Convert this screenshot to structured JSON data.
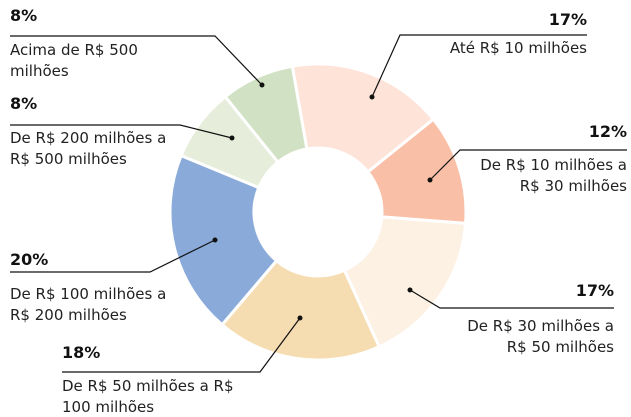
{
  "chart_data": {
    "type": "donut",
    "categories": [
      "Até R$ 10 milhões",
      "De R$ 10 milhões a R$ 30 milhões",
      "De R$ 30 milhões a R$ 50 milhões",
      "De R$ 50 milhões a R$ 100 milhões",
      "De R$ 100 milhões a R$ 200 milhões",
      "De R$ 200 milhões a R$ 500 milhões",
      "Acima de R$ 500 milhões"
    ],
    "values": [
      17,
      12,
      17,
      18,
      20,
      8,
      8
    ],
    "value_labels": [
      "17%",
      "12%",
      "17%",
      "18%",
      "20%",
      "8%",
      "8%"
    ],
    "colors": [
      "#fde3d8",
      "#f9bfa7",
      "#fdf1e3",
      "#f6dcb1",
      "#8aabd9",
      "#e6eddb",
      "#d1e1c3"
    ]
  }
}
